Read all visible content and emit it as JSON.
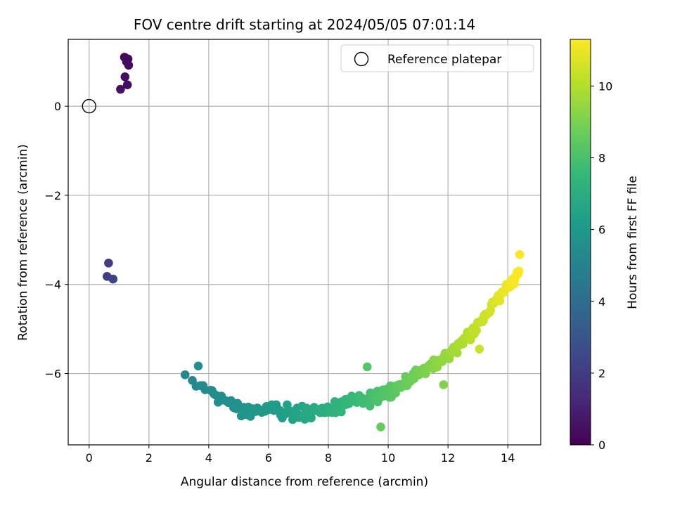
{
  "chart_data": {
    "type": "scatter",
    "title": "FOV centre drift starting at 2024/05/05 07:01:14",
    "xlabel": "Angular distance from reference (arcmin)",
    "ylabel": "Rotation from reference (arcmin)",
    "xlim": [
      -0.7,
      15.1
    ],
    "ylim": [
      -7.6,
      1.5
    ],
    "xticks": [
      0,
      2,
      4,
      6,
      8,
      10,
      12,
      14
    ],
    "yticks": [
      0,
      -2,
      -4,
      -6
    ],
    "grid": true,
    "legend": {
      "position": "top-right",
      "entries": [
        "Reference platepar"
      ]
    },
    "reference_point": {
      "x": 0.0,
      "y": 0.0
    },
    "colorbar": {
      "label": "Hours from first FF file",
      "range": [
        0,
        11.3
      ],
      "ticks": [
        0,
        2,
        4,
        6,
        8,
        10
      ],
      "colormap": [
        "#440154",
        "#482878",
        "#3e4989",
        "#31688e",
        "#26828e",
        "#1f9e89",
        "#35b779",
        "#6ece58",
        "#b5de2b",
        "#fde725"
      ]
    },
    "clusters": [
      {
        "x": [
          1.22,
          1.18,
          1.3,
          1.32,
          1.2,
          1.28,
          1.05,
          1.25
        ],
        "y": [
          1.08,
          1.1,
          1.06,
          0.92,
          0.66,
          0.48,
          0.38,
          1.0
        ],
        "hours": [
          0.2,
          0.25,
          0.3,
          0.35,
          0.4,
          0.45,
          0.5,
          0.3
        ]
      },
      {
        "x": [
          0.65,
          0.6,
          0.8
        ],
        "y": [
          -3.52,
          -3.82,
          -3.88
        ],
        "hours": [
          2.0,
          2.1,
          2.2
        ]
      }
    ],
    "trend": {
      "x_start": 3.2,
      "x_end": 14.4,
      "count": 260,
      "hours_start": 5.3,
      "hours_end": 11.3,
      "curve": [
        {
          "x": 3.2,
          "y": -6.15
        },
        {
          "x": 4.0,
          "y": -6.35
        },
        {
          "x": 5.0,
          "y": -6.85
        },
        {
          "x": 6.0,
          "y": -6.8
        },
        {
          "x": 7.0,
          "y": -6.9
        },
        {
          "x": 8.0,
          "y": -6.8
        },
        {
          "x": 9.0,
          "y": -6.65
        },
        {
          "x": 10.0,
          "y": -6.4
        },
        {
          "x": 11.0,
          "y": -6.0
        },
        {
          "x": 12.0,
          "y": -5.6
        },
        {
          "x": 12.5,
          "y": -5.25
        },
        {
          "x": 13.0,
          "y": -4.95
        },
        {
          "x": 13.5,
          "y": -4.45
        },
        {
          "x": 14.0,
          "y": -4.05
        },
        {
          "x": 14.4,
          "y": -3.7
        }
      ]
    },
    "outliers": [
      {
        "x": 3.65,
        "y": -5.83,
        "hours": 5.6
      },
      {
        "x": 9.75,
        "y": -7.2,
        "hours": 8.6
      },
      {
        "x": 9.3,
        "y": -5.85,
        "hours": 8.3
      },
      {
        "x": 14.4,
        "y": -3.33,
        "hours": 11.2
      },
      {
        "x": 13.05,
        "y": -5.45,
        "hours": 10.4
      },
      {
        "x": 11.85,
        "y": -6.25,
        "hours": 9.1
      }
    ]
  }
}
